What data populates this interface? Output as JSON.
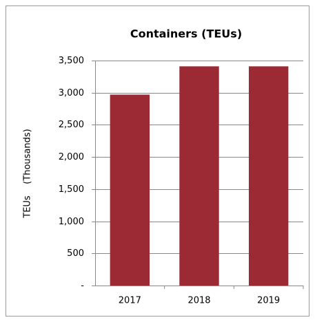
{
  "chart_data": {
    "type": "bar",
    "title": "Containers (TEUs)",
    "y_label": "TEUs    (Thousands)",
    "categories": [
      "2017",
      "2018",
      "2019"
    ],
    "values": [
      2970,
      3410,
      3410
    ],
    "color": "#9b2a35",
    "ylim": [
      0,
      3500
    ],
    "yticks": [
      {
        "value": 0,
        "label": "-"
      },
      500,
      {
        "value": 1000,
        "label": "1,000"
      },
      {
        "value": 1500,
        "label": "1,500"
      },
      {
        "value": 2000,
        "label": "2,000"
      },
      {
        "value": 2500,
        "label": "2,500"
      },
      {
        "value": 3000,
        "label": "3,000"
      },
      {
        "value": 3500,
        "label": "3,500"
      }
    ],
    "grid": true
  }
}
